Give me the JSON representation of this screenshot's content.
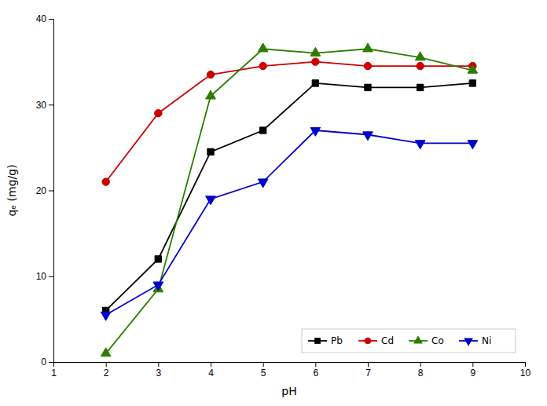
{
  "chart_data": {
    "type": "line",
    "x_label": "pH",
    "y_label": "qₑ (mg/g)",
    "x": [
      2,
      3,
      4,
      5,
      6,
      7,
      8,
      9
    ],
    "series": [
      {
        "name": "Pb",
        "color": "#000000",
        "marker": "square",
        "line_style": "solid",
        "values": [
          6.0,
          12.0,
          24.5,
          27.0,
          32.5,
          32.0,
          32.0,
          32.5
        ]
      },
      {
        "name": "Cd",
        "color": "#cc0000",
        "marker": "circle",
        "line_style": "solid",
        "values": [
          21.0,
          29.0,
          33.5,
          34.5,
          35.0,
          34.5,
          34.5,
          34.5
        ]
      },
      {
        "name": "Co",
        "color": "#2e7d00",
        "marker": "triangle-up",
        "line_style": "solid",
        "values": [
          1.0,
          8.5,
          31.0,
          36.5,
          36.0,
          36.5,
          35.5,
          34.0
        ]
      },
      {
        "name": "Ni",
        "color": "#0000cc",
        "marker": "triangle-down",
        "line_style": "solid",
        "values": [
          5.5,
          9.0,
          19.0,
          21.0,
          27.0,
          26.5,
          25.5,
          25.5
        ]
      }
    ],
    "xlim": [
      1,
      10
    ],
    "ylim": [
      0,
      40
    ],
    "xticks": [
      1,
      2,
      3,
      4,
      5,
      6,
      7,
      8,
      9,
      10
    ],
    "yticks": [
      0,
      10,
      20,
      30,
      40
    ],
    "grid": false,
    "legend": "lower right"
  }
}
